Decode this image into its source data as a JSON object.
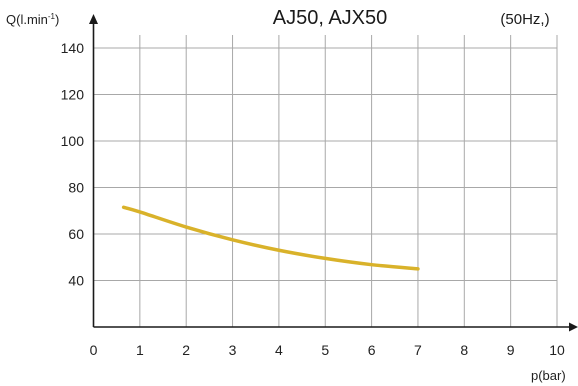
{
  "chart_data": {
    "type": "line",
    "title": "AJ50, AJX50",
    "subtitle": "(50Hz,)",
    "xlabel": "p(bar)",
    "ylabel_main": "Q(l.min",
    "ylabel_sup": "-1",
    "ylabel_end": ")",
    "xlim": [
      0,
      10
    ],
    "ylim": [
      20,
      150
    ],
    "x_ticks": [
      "0",
      "1",
      "2",
      "3",
      "4",
      "5",
      "6",
      "7",
      "8",
      "9",
      "10"
    ],
    "y_ticks": [
      "40",
      "60",
      "80",
      "100",
      "120",
      "140"
    ],
    "grid": true,
    "series": [
      {
        "color": "#d9b22a",
        "x": [
          0.65,
          1,
          2,
          3,
          4,
          5,
          6,
          7
        ],
        "y": [
          71.5,
          69.5,
          63,
          57.5,
          53,
          49.5,
          46.8,
          45
        ]
      }
    ]
  }
}
